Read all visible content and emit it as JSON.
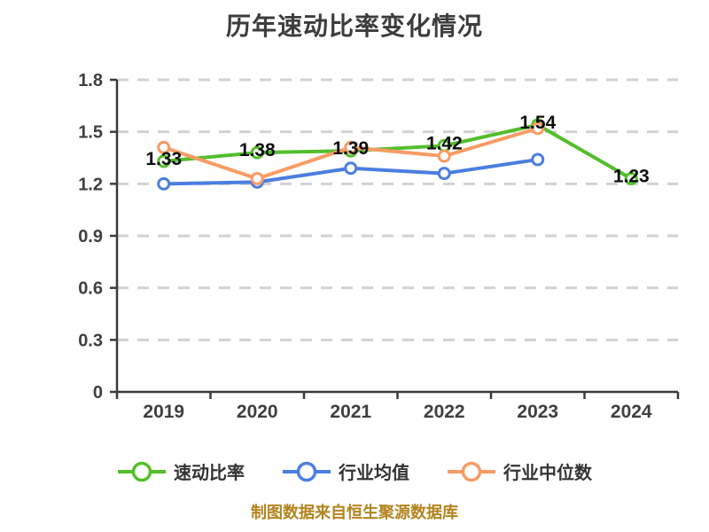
{
  "title": "历年速动比率变化情况",
  "caption": "制图数据来自恒生聚源数据库",
  "colors": {
    "axis": "#3a3a3a",
    "grid": "#d2d2d2",
    "tick_label": "#3f3f3f",
    "data_label": "#0d0d0d",
    "title": "#3c3c3c",
    "caption": "#b3841d",
    "marker_fill": "#ffffff"
  },
  "chart_data": {
    "type": "line",
    "categories": [
      "2019",
      "2020",
      "2021",
      "2022",
      "2023",
      "2024"
    ],
    "series": [
      {
        "id": "quick-ratio",
        "name": "速动比率",
        "color": "#53be2b",
        "values": [
          1.33,
          1.38,
          1.39,
          1.42,
          1.54,
          1.23
        ],
        "labeled": true
      },
      {
        "id": "industry-average",
        "name": "行业均值",
        "color": "#4b7ee0",
        "values": [
          1.2,
          1.21,
          1.29,
          1.26,
          1.34,
          null
        ],
        "labeled": false
      },
      {
        "id": "industry-median",
        "name": "行业中位数",
        "color": "#f89b64",
        "values": [
          1.41,
          1.23,
          1.41,
          1.36,
          1.52,
          null
        ],
        "labeled": false
      }
    ],
    "data_labels": [
      "1.33",
      "1.38",
      "1.39",
      "1.42",
      "1.54",
      "1.23"
    ],
    "title": "历年速动比率变化情况",
    "xlabel": "",
    "ylabel": "",
    "ylim": [
      0,
      1.8
    ],
    "yticks": [
      {
        "value": 0,
        "label": "0"
      },
      {
        "value": 0.3,
        "label": "0.3"
      },
      {
        "value": 0.6,
        "label": "0.6"
      },
      {
        "value": 0.9,
        "label": "0.9"
      },
      {
        "value": 1.2,
        "label": "1.2"
      },
      {
        "value": 1.5,
        "label": "1.5"
      },
      {
        "value": 1.8,
        "label": "1.8"
      }
    ],
    "grid": "horizontal dashed",
    "legend_position": "bottom"
  },
  "legend": {
    "items": [
      {
        "label": "速动比率",
        "color": "#53be2b"
      },
      {
        "label": "行业均值",
        "color": "#4b7ee0"
      },
      {
        "label": "行业中位数",
        "color": "#f89b64"
      }
    ]
  }
}
